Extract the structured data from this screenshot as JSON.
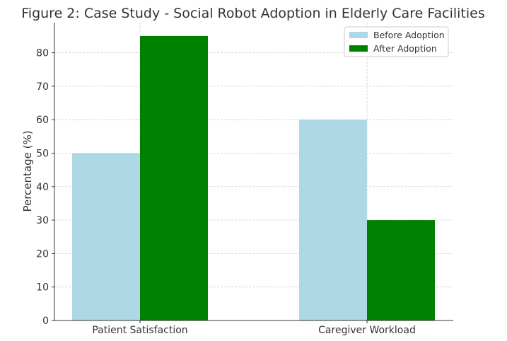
{
  "chart_data": {
    "type": "bar",
    "title": "Figure 2: Case Study - Social Robot Adoption in Elderly Care Facilities",
    "xlabel": "",
    "ylabel": "Percentage (%)",
    "categories": [
      "Patient Satisfaction",
      "Caregiver Workload"
    ],
    "series": [
      {
        "name": "Before Adoption",
        "values": [
          50,
          60
        ],
        "color": "#add8e6"
      },
      {
        "name": "After Adoption",
        "values": [
          85,
          30
        ],
        "color": "#008000"
      }
    ],
    "ylim": [
      0,
      89
    ],
    "yticks": [
      0,
      10,
      20,
      30,
      40,
      50,
      60,
      70,
      80
    ],
    "grid": true,
    "legend_position": "top-right"
  }
}
